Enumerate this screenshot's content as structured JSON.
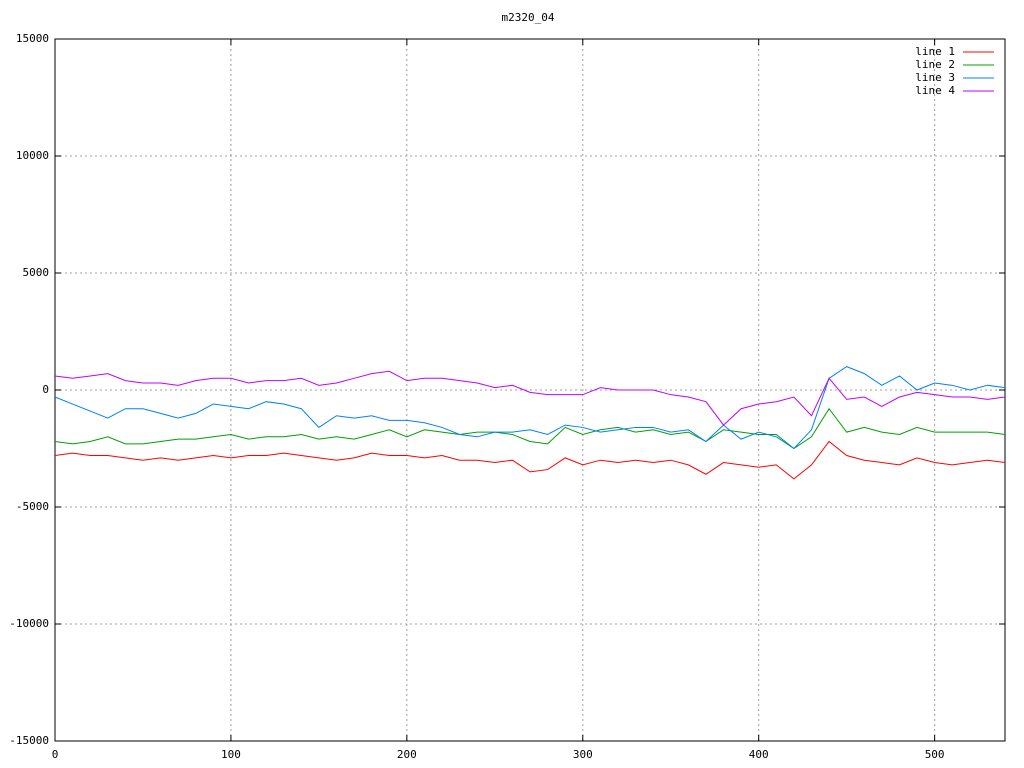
{
  "chart_data": {
    "type": "line",
    "title": "m2320_04",
    "x": [
      0,
      10,
      20,
      30,
      40,
      50,
      60,
      70,
      80,
      90,
      100,
      110,
      120,
      130,
      140,
      150,
      160,
      170,
      180,
      190,
      200,
      210,
      220,
      230,
      240,
      250,
      260,
      270,
      280,
      290,
      300,
      310,
      320,
      330,
      340,
      350,
      360,
      370,
      380,
      390,
      400,
      410,
      420,
      430,
      440,
      450,
      460,
      470,
      480,
      490,
      500,
      510,
      520,
      530,
      540
    ],
    "series": [
      {
        "name": "line 1",
        "color": "#ff0000",
        "values": [
          -2800,
          -2700,
          -2800,
          -2800,
          -2900,
          -3000,
          -2900,
          -3000,
          -2900,
          -2800,
          -2900,
          -2800,
          -2800,
          -2700,
          -2800,
          -2900,
          -3000,
          -2900,
          -2700,
          -2800,
          -2800,
          -2900,
          -2800,
          -3000,
          -3000,
          -3100,
          -3000,
          -3500,
          -3400,
          -2900,
          -3200,
          -3000,
          -3100,
          -3000,
          -3100,
          -3000,
          -3200,
          -3600,
          -3100,
          -3200,
          -3300,
          -3200,
          -3800,
          -3200,
          -2200,
          -2800,
          -3000,
          -3100,
          -3200,
          -2900,
          -3100,
          -3200,
          -3100,
          -3000,
          -3100
        ]
      },
      {
        "name": "line 2",
        "color": "#00a000",
        "values": [
          -2200,
          -2300,
          -2200,
          -2000,
          -2300,
          -2300,
          -2200,
          -2100,
          -2100,
          -2000,
          -1900,
          -2100,
          -2000,
          -2000,
          -1900,
          -2100,
          -2000,
          -2100,
          -1900,
          -1700,
          -2000,
          -1700,
          -1800,
          -1900,
          -1800,
          -1800,
          -1900,
          -2200,
          -2300,
          -1600,
          -1900,
          -1700,
          -1600,
          -1800,
          -1700,
          -1900,
          -1800,
          -2200,
          -1700,
          -1800,
          -1900,
          -1900,
          -2500,
          -2000,
          -800,
          -1800,
          -1600,
          -1800,
          -1900,
          -1600,
          -1800,
          -1800,
          -1800,
          -1800,
          -1900
        ]
      },
      {
        "name": "line 3",
        "color": "#0080ff",
        "values": [
          -300,
          -600,
          -900,
          -1200,
          -800,
          -800,
          -1000,
          -1200,
          -1000,
          -600,
          -700,
          -800,
          -500,
          -600,
          -800,
          -1600,
          -1100,
          -1200,
          -1100,
          -1300,
          -1300,
          -1400,
          -1600,
          -1900,
          -2000,
          -1800,
          -1800,
          -1700,
          -1900,
          -1500,
          -1600,
          -1800,
          -1700,
          -1600,
          -1600,
          -1800,
          -1700,
          -2200,
          -1500,
          -2100,
          -1800,
          -2000,
          -2500,
          -1700,
          500,
          1000,
          700,
          200,
          600,
          0,
          300,
          200,
          0,
          200,
          100
        ]
      },
      {
        "name": "line 4",
        "color": "#c000ff",
        "values": [
          600,
          500,
          600,
          700,
          400,
          300,
          300,
          200,
          400,
          500,
          500,
          300,
          400,
          400,
          500,
          200,
          300,
          500,
          700,
          800,
          400,
          500,
          500,
          400,
          300,
          100,
          200,
          -100,
          -200,
          -200,
          -200,
          100,
          0,
          0,
          0,
          -200,
          -300,
          -500,
          -1500,
          -800,
          -600,
          -500,
          -300,
          -1100,
          500,
          -400,
          -300,
          -700,
          -300,
          -100,
          -200,
          -300,
          -300,
          -400,
          -300
        ]
      }
    ],
    "xlim": [
      0,
      540
    ],
    "ylim": [
      -15000,
      15000
    ],
    "xticks": [
      0,
      100,
      200,
      300,
      400,
      500
    ],
    "yticks": [
      -15000,
      -10000,
      -5000,
      0,
      5000,
      10000,
      15000
    ],
    "grid": true,
    "legend": "top-right"
  }
}
